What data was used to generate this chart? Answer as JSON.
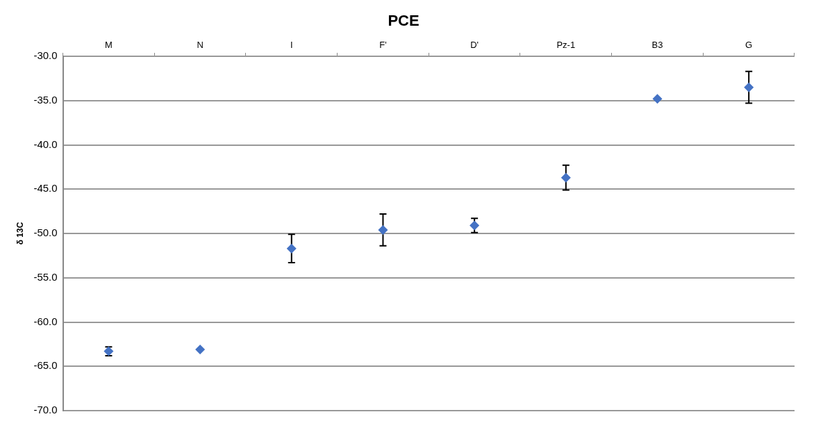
{
  "chart_data": {
    "type": "scatter",
    "title": "PCE",
    "ylabel": "δ 13C",
    "categories": [
      "M",
      "N",
      "I",
      "F'",
      "D'",
      "Pz-1",
      "B3",
      "G"
    ],
    "values": [
      -63.3,
      -63.1,
      -51.7,
      -49.6,
      -49.1,
      -43.7,
      -34.8,
      -33.5
    ],
    "errors": [
      0.5,
      null,
      1.6,
      1.8,
      0.8,
      1.4,
      null,
      1.8
    ],
    "color": "#4472c4",
    "marker": "diamond",
    "ylim": [
      -70,
      -30
    ],
    "yticks": [
      {
        "value": -70,
        "label": "-70.0"
      },
      {
        "value": -65,
        "label": "-65.0"
      },
      {
        "value": -60,
        "label": "-60.0"
      },
      {
        "value": -55,
        "label": "-55.0"
      },
      {
        "value": -50,
        "label": "-50.0"
      },
      {
        "value": -45,
        "label": "-45.0"
      },
      {
        "value": -40,
        "label": "-40.0"
      },
      {
        "value": -35,
        "label": "-35.0"
      },
      {
        "value": -30,
        "label": "-30.0"
      }
    ],
    "grid": "y",
    "legend": false
  }
}
